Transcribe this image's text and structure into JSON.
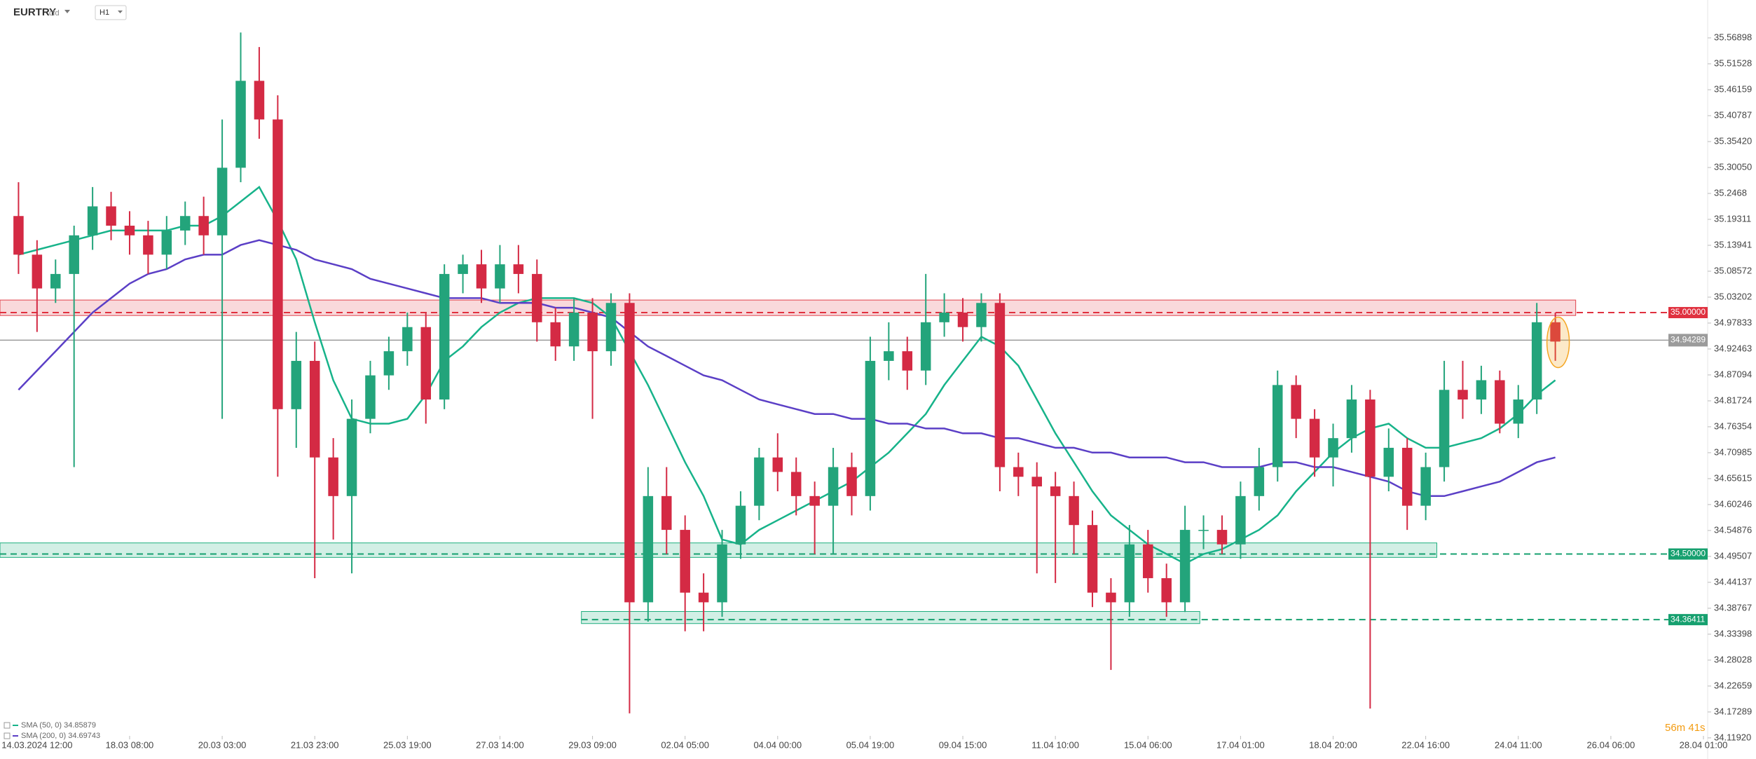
{
  "header": {
    "symbol": "EURTRY",
    "instrument": "cfd",
    "timeframe": "H1"
  },
  "chart_data": {
    "type": "candlestick",
    "x": [
      -1,
      0,
      1,
      2,
      3,
      4,
      5,
      6,
      7,
      8,
      9,
      10,
      11,
      12,
      13,
      14,
      15,
      16,
      17,
      18,
      19,
      20,
      21,
      22,
      23,
      24,
      25,
      26,
      27,
      28,
      29,
      30,
      31,
      32,
      33,
      34,
      35,
      36,
      37,
      38,
      39,
      40,
      41,
      42,
      43,
      44,
      45,
      46,
      47,
      48,
      49,
      50,
      51,
      52,
      53,
      54,
      55,
      56,
      57,
      58,
      59,
      60,
      61,
      62,
      63,
      64,
      65,
      66,
      67,
      68,
      69,
      70,
      71,
      72,
      73,
      74,
      75,
      76,
      77,
      78,
      79,
      80,
      81,
      82
    ],
    "open": [
      35.2,
      35.12,
      35.05,
      35.08,
      35.16,
      35.22,
      35.18,
      35.16,
      35.12,
      35.17,
      35.2,
      35.16,
      35.3,
      35.48,
      35.4,
      34.8,
      34.9,
      34.7,
      34.62,
      34.78,
      34.87,
      34.92,
      34.97,
      34.82,
      35.08,
      35.1,
      35.05,
      35.1,
      35.08,
      34.98,
      34.93,
      35.0,
      34.92,
      35.02,
      34.4,
      34.62,
      34.55,
      34.42,
      34.4,
      34.52,
      34.6,
      34.7,
      34.67,
      34.62,
      34.6,
      34.68,
      34.62,
      34.9,
      34.92,
      34.88,
      34.98,
      35.0,
      34.97,
      35.02,
      34.68,
      34.66,
      34.64,
      34.62,
      34.56,
      34.42,
      34.4,
      34.52,
      34.45,
      34.4,
      34.55,
      34.55,
      34.52,
      34.62,
      34.68,
      34.85,
      34.78,
      34.7,
      34.74,
      34.82,
      34.66,
      34.72,
      34.6,
      34.68,
      34.84,
      34.82,
      34.86,
      34.77,
      34.82,
      34.98
    ],
    "high": [
      35.27,
      35.15,
      35.11,
      35.18,
      35.26,
      35.25,
      35.21,
      35.19,
      35.2,
      35.23,
      35.24,
      35.4,
      35.58,
      35.55,
      35.45,
      34.96,
      34.94,
      34.74,
      34.82,
      34.9,
      34.95,
      35.0,
      35.0,
      35.1,
      35.12,
      35.13,
      35.14,
      35.14,
      35.11,
      35.01,
      35.03,
      35.03,
      35.04,
      35.04,
      34.68,
      34.68,
      34.58,
      34.46,
      34.55,
      34.63,
      34.72,
      34.75,
      34.7,
      34.65,
      34.72,
      34.71,
      34.95,
      34.98,
      34.95,
      35.08,
      35.04,
      35.03,
      35.04,
      35.04,
      34.71,
      34.69,
      34.67,
      34.65,
      34.59,
      34.45,
      34.56,
      34.55,
      34.48,
      34.6,
      34.58,
      34.58,
      34.65,
      34.72,
      34.88,
      34.87,
      34.8,
      34.77,
      34.85,
      34.84,
      34.76,
      34.74,
      34.71,
      34.9,
      34.9,
      34.89,
      34.88,
      34.85,
      35.02,
      35.0
    ],
    "low": [
      35.08,
      34.96,
      35.02,
      34.68,
      35.13,
      35.15,
      35.12,
      35.08,
      35.09,
      35.14,
      35.12,
      34.78,
      35.27,
      35.36,
      34.66,
      34.72,
      34.45,
      34.53,
      34.46,
      34.75,
      34.84,
      34.89,
      34.77,
      34.8,
      35.04,
      35.02,
      35.02,
      35.04,
      34.94,
      34.9,
      34.9,
      34.78,
      34.89,
      34.17,
      34.36,
      34.5,
      34.34,
      34.34,
      34.37,
      34.49,
      34.57,
      34.63,
      34.58,
      34.5,
      34.5,
      34.58,
      34.59,
      34.86,
      34.84,
      34.85,
      34.95,
      34.94,
      34.94,
      34.63,
      34.62,
      34.46,
      34.44,
      34.5,
      34.39,
      34.26,
      34.37,
      34.42,
      34.37,
      34.38,
      34.51,
      34.5,
      34.49,
      34.59,
      34.65,
      34.74,
      34.66,
      34.64,
      34.71,
      34.18,
      34.63,
      34.55,
      34.57,
      34.65,
      34.78,
      34.79,
      34.75,
      34.74,
      34.79,
      34.9
    ],
    "close": [
      35.12,
      35.05,
      35.08,
      35.16,
      35.22,
      35.18,
      35.16,
      35.12,
      35.17,
      35.2,
      35.16,
      35.3,
      35.48,
      35.4,
      34.8,
      34.9,
      34.7,
      34.62,
      34.78,
      34.87,
      34.92,
      34.97,
      34.82,
      35.08,
      35.1,
      35.05,
      35.1,
      35.08,
      34.98,
      34.93,
      35.0,
      34.92,
      35.02,
      34.4,
      34.62,
      34.55,
      34.42,
      34.4,
      34.52,
      34.6,
      34.7,
      34.67,
      34.62,
      34.6,
      34.68,
      34.62,
      34.9,
      34.92,
      34.88,
      34.98,
      35.0,
      34.97,
      35.02,
      34.68,
      34.66,
      34.64,
      34.62,
      34.56,
      34.42,
      34.4,
      34.52,
      34.45,
      34.4,
      34.55,
      34.55,
      34.52,
      34.62,
      34.68,
      34.85,
      34.78,
      34.7,
      34.74,
      34.82,
      34.66,
      34.72,
      34.6,
      34.68,
      34.84,
      34.82,
      34.86,
      34.77,
      34.82,
      34.98,
      34.94
    ],
    "up_color": "#23a47b",
    "down_color": "#d42a44",
    "series": [
      {
        "name": "SMA (50, 0) 34.85879",
        "color": "#17b38a",
        "values": [
          35.12,
          35.13,
          35.14,
          35.15,
          35.16,
          35.17,
          35.17,
          35.17,
          35.17,
          35.18,
          35.18,
          35.2,
          35.23,
          35.26,
          35.19,
          35.11,
          34.98,
          34.86,
          34.78,
          34.77,
          34.77,
          34.78,
          34.83,
          34.9,
          34.93,
          34.97,
          35.0,
          35.02,
          35.03,
          35.03,
          35.03,
          35.02,
          34.99,
          34.92,
          34.85,
          34.77,
          34.69,
          34.62,
          34.53,
          34.52,
          34.55,
          34.57,
          34.59,
          34.61,
          34.63,
          34.65,
          34.68,
          34.71,
          34.75,
          34.79,
          34.85,
          34.9,
          34.95,
          34.93,
          34.89,
          34.82,
          34.75,
          34.69,
          34.63,
          34.58,
          34.55,
          34.52,
          34.5,
          34.48,
          34.5,
          34.51,
          34.53,
          34.55,
          34.58,
          34.63,
          34.67,
          34.71,
          34.74,
          34.76,
          34.77,
          34.74,
          34.72,
          34.72,
          34.73,
          34.74,
          34.76,
          34.79,
          34.83,
          34.86
        ]
      },
      {
        "name": "SMA (200, 0) 34.69743",
        "color": "#5b3fc6",
        "values": [
          34.84,
          34.88,
          34.92,
          34.96,
          35.0,
          35.03,
          35.06,
          35.08,
          35.09,
          35.11,
          35.12,
          35.12,
          35.14,
          35.15,
          35.14,
          35.13,
          35.11,
          35.1,
          35.09,
          35.07,
          35.06,
          35.05,
          35.04,
          35.03,
          35.03,
          35.03,
          35.02,
          35.02,
          35.02,
          35.01,
          35.01,
          35.0,
          34.99,
          34.96,
          34.93,
          34.91,
          34.89,
          34.87,
          34.86,
          34.84,
          34.82,
          34.81,
          34.8,
          34.79,
          34.79,
          34.78,
          34.78,
          34.77,
          34.77,
          34.76,
          34.76,
          34.75,
          34.75,
          34.74,
          34.74,
          34.73,
          34.72,
          34.72,
          34.71,
          34.71,
          34.7,
          34.7,
          34.7,
          34.69,
          34.69,
          34.68,
          34.68,
          34.68,
          34.69,
          34.69,
          34.68,
          34.68,
          34.67,
          34.66,
          34.65,
          34.63,
          34.62,
          34.62,
          34.63,
          34.64,
          34.65,
          34.67,
          34.69,
          34.7
        ]
      }
    ],
    "xlim": [
      -2,
      90
    ],
    "xticks": [
      {
        "value": 0,
        "label": "14.03.2024  12:00"
      },
      {
        "value": 5,
        "label": "18.03 08:00"
      },
      {
        "value": 10,
        "label": "20.03 03:00"
      },
      {
        "value": 15,
        "label": "21.03 23:00"
      },
      {
        "value": 20,
        "label": "25.03 19:00"
      },
      {
        "value": 25,
        "label": "27.03 14:00"
      },
      {
        "value": 30,
        "label": "29.03 09:00"
      },
      {
        "value": 35,
        "label": "02.04 05:00"
      },
      {
        "value": 40,
        "label": "04.04 00:00"
      },
      {
        "value": 45,
        "label": "05.04 19:00"
      },
      {
        "value": 50,
        "label": "09.04 15:00"
      },
      {
        "value": 55,
        "label": "11.04 10:00"
      },
      {
        "value": 60,
        "label": "15.04 06:00"
      },
      {
        "value": 65,
        "label": "17.04 01:00"
      },
      {
        "value": 70,
        "label": "18.04 20:00"
      },
      {
        "value": 75,
        "label": "22.04 16:00"
      },
      {
        "value": 80,
        "label": "24.04 11:00"
      },
      {
        "value": 85,
        "label": "26.04 06:00"
      },
      {
        "value": 90,
        "label": "28.04 01:00"
      }
    ],
    "ylim": [
      34.0987,
      35.6474
    ],
    "yticks": [
      35.56898,
      35.51528,
      35.46159,
      35.40787,
      {
        "value": 35.3542,
        "label": "35.35420"
      },
      {
        "value": 35.3005,
        "label": "35.30050"
      },
      35.2468,
      35.19311,
      35.13941,
      35.08572,
      35.03202,
      34.97833,
      34.92463,
      34.87094,
      34.81724,
      34.76354,
      34.70985,
      34.65615,
      34.60246,
      34.54876,
      34.49507,
      34.44137,
      34.38767,
      34.33398,
      34.28028,
      34.22659,
      34.17289,
      {
        "value": 34.1192,
        "label": "34.11920"
      }
    ],
    "zones": [
      {
        "from": 34.994,
        "to": 35.026,
        "start": -2,
        "end": 83.1,
        "color": "#e0404a"
      },
      {
        "from": 34.493,
        "to": 34.523,
        "start": -2,
        "end": 75.6,
        "color": "#1fae7e"
      },
      {
        "from": 34.356,
        "to": 34.381,
        "start": 29.4,
        "end": 62.8,
        "color": "#1fae7e"
      }
    ],
    "levels": [
      {
        "value": 35,
        "label": "35.00000",
        "color": "#e0313f",
        "start": -2
      },
      {
        "value": 34.5,
        "label": "34.50000",
        "color": "#16a06f",
        "start": -2
      },
      {
        "value": 34.36411,
        "label": "34.36411",
        "color": "#16a06f",
        "start": 29.4
      }
    ],
    "current_price": 34.94289,
    "countdown": "56m 41s"
  }
}
